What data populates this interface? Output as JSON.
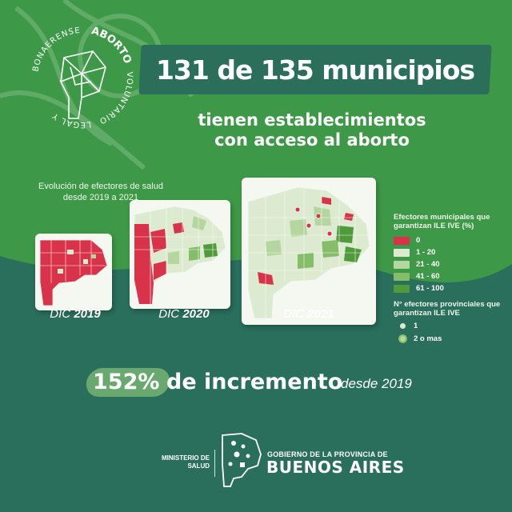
{
  "campaign_logo": {
    "ring_text_top": "ABORTO",
    "ring_text_right": "VOLUNTARIO",
    "ring_text_bottom": "LEGAL Y",
    "ring_text_left": "BONAERENSE"
  },
  "headline": "131 de 135 municipios",
  "subheadline_line1": "tienen establecimientos",
  "subheadline_line2": "con acceso al aborto",
  "evolution_title": "Evolución de efectores de salud desde 2019 a 2021",
  "maps": [
    {
      "prefix": "DIC",
      "year": "2019"
    },
    {
      "prefix": "DIC",
      "year": "2020"
    },
    {
      "prefix": "DIC",
      "year": "2021"
    }
  ],
  "legend": {
    "municipal_title": "Efectores municipales que garantizan ILE IVE (%)",
    "ranges": [
      {
        "label": "0",
        "color": "#d8334a"
      },
      {
        "label": "1 - 20",
        "color": "#dcebd0"
      },
      {
        "label": "21 - 40",
        "color": "#b5d69e"
      },
      {
        "label": "41 - 60",
        "color": "#86bd68"
      },
      {
        "label": "61 - 100",
        "color": "#4f9a3a"
      }
    ],
    "provincial_title": "N° efectores provinciales que garantizan ILE IVE",
    "dots": [
      {
        "label": "1",
        "color": "#dcebd0"
      },
      {
        "label": "2 o mas",
        "color": "#b5d69e"
      }
    ]
  },
  "increase": {
    "percent": "152%",
    "text": "de incremento",
    "since": "desde 2019"
  },
  "footer": {
    "ministerio": "MINISTERIO DE SALUD",
    "gov_line1": "GOBIERNO DE LA PROVINCIA DE",
    "gov_line2": "BUENOS AIRES"
  },
  "colors": {
    "green_top": "#3d9947",
    "teal_bottom": "#2a6e5c",
    "red": "#d8334a"
  }
}
